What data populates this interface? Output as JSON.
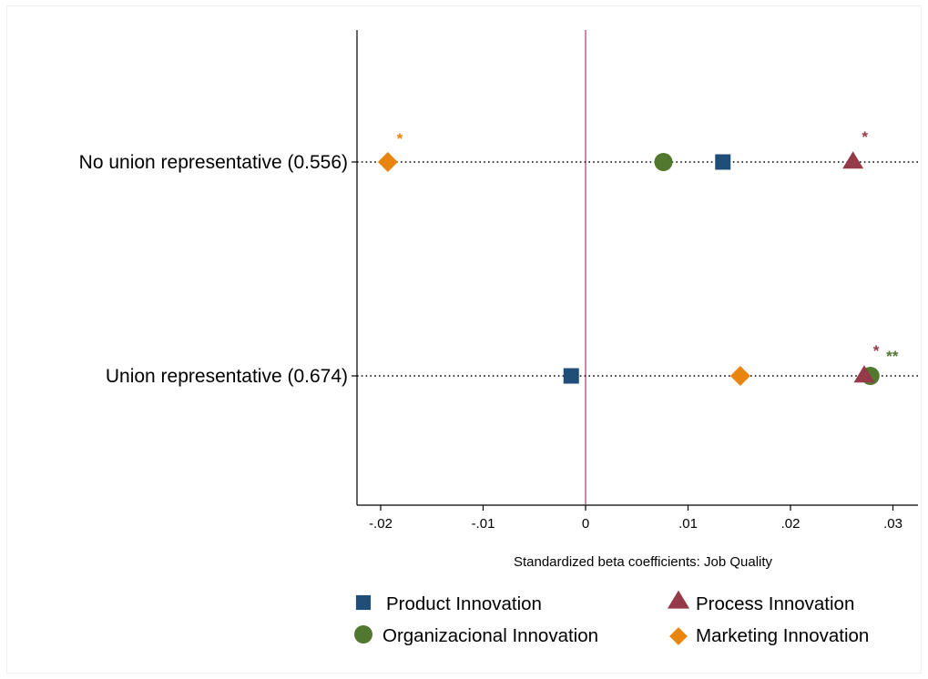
{
  "chart_data": {
    "type": "scatter",
    "title": "",
    "xlabel": "Standardized beta coefficients: Job Quality",
    "ylabel": "",
    "xlim": [
      -0.0222,
      0.0324
    ],
    "xticks": [
      -0.02,
      -0.01,
      0,
      0.01,
      0.02,
      0.03
    ],
    "xtick_labels": [
      "-.02",
      "-.01",
      "0",
      ".01",
      ".02",
      ".03"
    ],
    "reference_line_x": 0,
    "grid": false,
    "legend_position": "bottom",
    "categories": [
      "No union representative (0.556)",
      "Union representative (0.674)"
    ],
    "series": [
      {
        "name": "Product Innovation",
        "marker": "square",
        "color": "#1f4e79",
        "values": [
          0.0134,
          -0.0014
        ],
        "significance": [
          "",
          ""
        ]
      },
      {
        "name": "Process Innovation",
        "marker": "triangle",
        "color": "#943a48",
        "values": [
          0.0261,
          0.0272
        ],
        "significance": [
          "*",
          "*"
        ]
      },
      {
        "name": "Organizacional Innovation",
        "marker": "circle",
        "color": "#52782f",
        "values": [
          0.0076,
          0.0278
        ],
        "significance": [
          "",
          "**"
        ]
      },
      {
        "name": "Marketing Innovation",
        "marker": "diamond",
        "color": "#e8850f",
        "values": [
          -0.0193,
          0.0151
        ],
        "significance": [
          "*",
          ""
        ]
      }
    ]
  }
}
